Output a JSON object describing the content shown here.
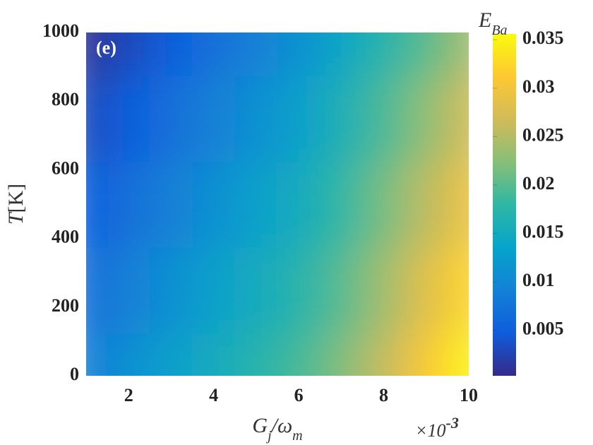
{
  "chart_data": {
    "type": "heatmap",
    "annotation": "(e)",
    "xlabel_parts": [
      {
        "text": "G"
      },
      {
        "text": "j",
        "sub": true
      },
      {
        "text": "/ω"
      },
      {
        "text": "m",
        "sub": true
      }
    ],
    "ylabel_parts": [
      {
        "text": "T"
      },
      {
        "text": "[K]"
      }
    ],
    "colorbar_label_parts": [
      {
        "text": "E"
      },
      {
        "text": "Ba",
        "sub": true
      }
    ],
    "x_exponent": {
      "base": "×10",
      "sup": "-3"
    },
    "x": [
      1,
      2,
      3,
      4,
      5,
      6,
      7,
      8,
      9,
      10
    ],
    "y": [
      0,
      250,
      500,
      750,
      1000
    ],
    "z": [
      [
        0.009,
        0.011,
        0.013,
        0.015,
        0.017,
        0.019,
        0.022,
        0.026,
        0.031,
        0.035
      ],
      [
        0.007,
        0.009,
        0.011,
        0.013,
        0.015,
        0.017,
        0.02,
        0.0238,
        0.0283,
        0.0323
      ],
      [
        0.005,
        0.007,
        0.009,
        0.011,
        0.013,
        0.015,
        0.018,
        0.0215,
        0.0255,
        0.0295
      ],
      [
        0.003,
        0.005,
        0.007,
        0.009,
        0.011,
        0.013,
        0.016,
        0.0193,
        0.0228,
        0.0268
      ],
      [
        0.001,
        0.003,
        0.005,
        0.007,
        0.009,
        0.011,
        0.014,
        0.017,
        0.02,
        0.024
      ]
    ],
    "xlim": [
      1,
      10
    ],
    "xticks": [
      2,
      4,
      6,
      8,
      10
    ],
    "ylim": [
      0,
      1000
    ],
    "yticks": [
      0,
      200,
      400,
      600,
      800,
      1000
    ],
    "clim": [
      0.0003,
      0.0356
    ],
    "cticks": [
      0.005,
      0.01,
      0.015,
      0.02,
      0.025,
      0.03,
      0.035
    ],
    "colormap": [
      "#352a87",
      "#0f5cdd",
      "#1481d6",
      "#06a4ca",
      "#2eb7a4",
      "#87bf77",
      "#d1bb59",
      "#fec832",
      "#f9fb0e"
    ]
  }
}
